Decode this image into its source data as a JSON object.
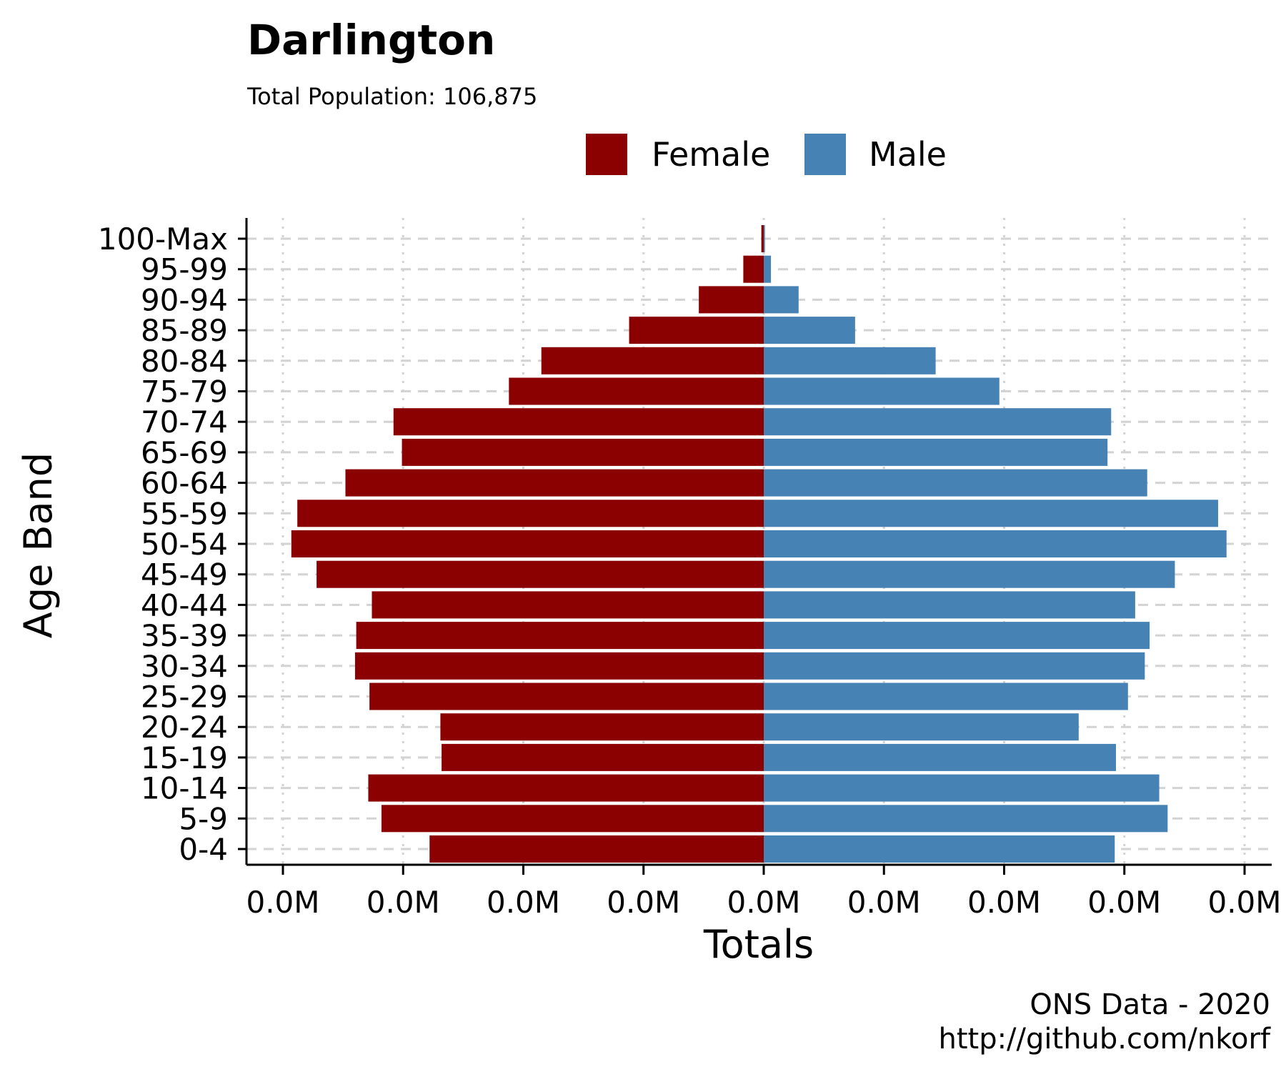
{
  "chart_data": {
    "type": "bar",
    "orientation": "horizontal",
    "layout": "population-pyramid",
    "title": "Darlington",
    "subtitle": "Total Population:  106,875",
    "caption": [
      "ONS Data - 2020",
      "http://github.com/nkorf"
    ],
    "xlabel": "Totals",
    "ylabel": "Age Band",
    "xticks": [
      "0.0M",
      "0.0M",
      "0.0M",
      "0.0M",
      "0.0M",
      "0.0M",
      "0.0M",
      "0.0M",
      "0.0M"
    ],
    "xlim": [
      -4000,
      4000
    ],
    "legend_position": "top",
    "grid": true,
    "categories": [
      "0-4",
      "5-9",
      "10-14",
      "15-19",
      "20-24",
      "25-29",
      "30-34",
      "35-39",
      "40-44",
      "45-49",
      "50-54",
      "55-59",
      "60-64",
      "65-69",
      "70-74",
      "75-79",
      "80-84",
      "85-89",
      "90-94",
      "95-99",
      "100-Max"
    ],
    "series": [
      {
        "name": "Female",
        "color": "#8B0000",
        "values": [
          2780,
          3180,
          3290,
          2680,
          2690,
          3280,
          3400,
          3390,
          3260,
          3720,
          3930,
          3880,
          3480,
          3010,
          3080,
          2120,
          1850,
          1120,
          540,
          170,
          20
        ]
      },
      {
        "name": "Male",
        "color": "#4682B4",
        "values": [
          2920,
          3360,
          3290,
          2930,
          2620,
          3030,
          3170,
          3210,
          3090,
          3420,
          3850,
          3780,
          3190,
          2860,
          2890,
          1960,
          1430,
          760,
          290,
          60,
          10
        ]
      }
    ]
  }
}
